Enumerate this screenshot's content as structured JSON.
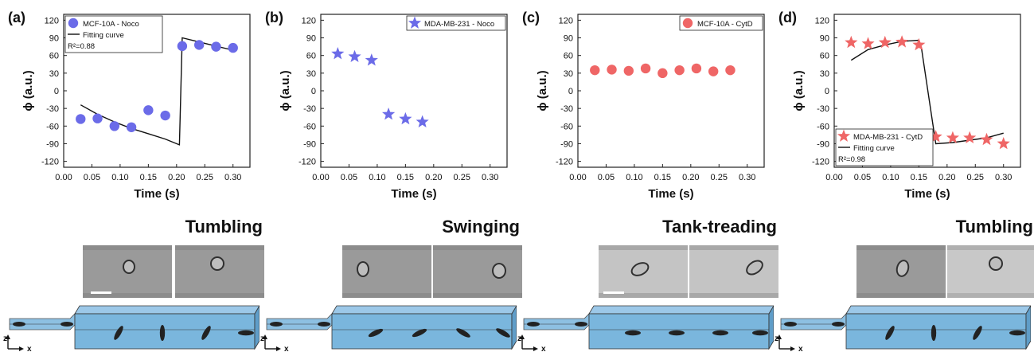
{
  "panels": [
    {
      "letter": "(a)",
      "mode_label": "Tumbling",
      "legend": [
        "MCF-10A - Noco",
        "Fitting curve",
        "R²=0.88"
      ]
    },
    {
      "letter": "(b)",
      "mode_label": "Swinging",
      "legend": [
        "MDA-MB-231 - Noco"
      ]
    },
    {
      "letter": "(c)",
      "mode_label": "Tank-treading",
      "legend": [
        "MCF-10A - CytD"
      ]
    },
    {
      "letter": "(d)",
      "mode_label": "Tumbling",
      "legend": [
        "MDA-MB-231 - CytD",
        "Fitting curve",
        "R²=0.98"
      ]
    }
  ],
  "axis_labels": {
    "z": "z",
    "x": "x"
  },
  "colors": {
    "blue": "#6b6be8",
    "red": "#ef6666",
    "channel": "#7ab6dd"
  },
  "chart_data": [
    {
      "type": "scatter",
      "xlabel": "Time (s)",
      "ylabel": "ϕ (a.u.)",
      "xlim": [
        0,
        0.33
      ],
      "ylim": [
        -130,
        130
      ],
      "xticks": [
        "0.00",
        "0.05",
        "0.10",
        "0.15",
        "0.20",
        "0.25",
        "0.30"
      ],
      "yticks": [
        "120",
        "90",
        "60",
        "30",
        "0",
        "-30",
        "-60",
        "-90",
        "-120"
      ],
      "marker": "circle",
      "color": "#6b6be8",
      "series": [
        {
          "name": "MCF-10A - Noco",
          "x": [
            0.03,
            0.06,
            0.09,
            0.12,
            0.15,
            0.18,
            0.21,
            0.24,
            0.27,
            0.3
          ],
          "y": [
            -48,
            -47,
            -60,
            -62,
            -33,
            -42,
            76,
            78,
            75,
            73
          ]
        }
      ],
      "fit": {
        "name": "Fitting curve",
        "x": [
          0.03,
          0.06,
          0.09,
          0.12,
          0.15,
          0.18,
          0.205,
          0.21,
          0.24,
          0.27,
          0.3
        ],
        "y": [
          -24,
          -40,
          -53,
          -64,
          -73,
          -82,
          -92,
          90,
          83,
          76,
          69
        ]
      },
      "annotation": "R²=0.88",
      "legend_position": "top-left"
    },
    {
      "type": "scatter",
      "xlabel": "Time (s)",
      "ylabel": "ϕ (a.u.)",
      "xlim": [
        0,
        0.33
      ],
      "ylim": [
        -130,
        130
      ],
      "xticks": [
        "0.00",
        "0.05",
        "0.10",
        "0.15",
        "0.20",
        "0.25",
        "0.30"
      ],
      "yticks": [
        "120",
        "90",
        "60",
        "30",
        "0",
        "-30",
        "-60",
        "-90",
        "-120"
      ],
      "marker": "star",
      "color": "#6b6be8",
      "series": [
        {
          "name": "MDA-MB-231 - Noco",
          "x": [
            0.03,
            0.06,
            0.09,
            0.12,
            0.15,
            0.18
          ],
          "y": [
            63,
            58,
            52,
            -40,
            -48,
            -53
          ]
        }
      ],
      "legend_position": "top-right"
    },
    {
      "type": "scatter",
      "xlabel": "Time (s)",
      "ylabel": "ϕ (a.u.)",
      "xlim": [
        0,
        0.33
      ],
      "ylim": [
        -130,
        130
      ],
      "xticks": [
        "0.00",
        "0.05",
        "0.10",
        "0.15",
        "0.20",
        "0.25",
        "0.30"
      ],
      "yticks": [
        "120",
        "90",
        "60",
        "30",
        "0",
        "-30",
        "-60",
        "-90",
        "-120"
      ],
      "marker": "circle",
      "color": "#ef6666",
      "series": [
        {
          "name": "MCF-10A - CytD",
          "x": [
            0.03,
            0.06,
            0.09,
            0.12,
            0.15,
            0.18,
            0.21,
            0.24,
            0.27
          ],
          "y": [
            35,
            36,
            34,
            38,
            30,
            35,
            38,
            33,
            35
          ]
        }
      ],
      "legend_position": "top-right"
    },
    {
      "type": "scatter",
      "xlabel": "Time (s)",
      "ylabel": "ϕ (a.u.)",
      "xlim": [
        0,
        0.33
      ],
      "ylim": [
        -130,
        130
      ],
      "xticks": [
        "0.00",
        "0.05",
        "0.10",
        "0.15",
        "0.20",
        "0.25",
        "0.30"
      ],
      "yticks": [
        "120",
        "90",
        "60",
        "30",
        "0",
        "-30",
        "-60",
        "-90",
        "-120"
      ],
      "marker": "star",
      "color": "#ef6666",
      "series": [
        {
          "name": "MDA-MB-231 - CytD",
          "x": [
            0.03,
            0.06,
            0.09,
            0.12,
            0.15,
            0.18,
            0.21,
            0.24,
            0.27,
            0.3
          ],
          "y": [
            82,
            80,
            82,
            83,
            78,
            -78,
            -80,
            -80,
            -83,
            -90
          ]
        }
      ],
      "fit": {
        "name": "Fitting curve",
        "x": [
          0.03,
          0.06,
          0.09,
          0.12,
          0.15,
          0.155,
          0.18,
          0.21,
          0.24,
          0.27,
          0.3
        ],
        "y": [
          52,
          70,
          78,
          84,
          86,
          70,
          -90,
          -88,
          -84,
          -80,
          -72
        ]
      },
      "annotation": "R²=0.98",
      "legend_position": "bottom-left"
    }
  ]
}
